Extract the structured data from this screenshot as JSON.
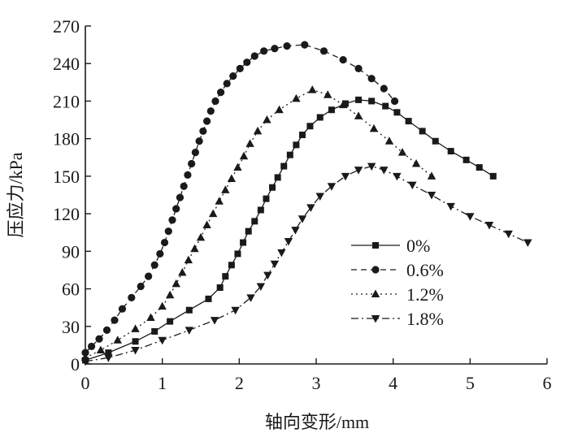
{
  "chart_data": {
    "type": "line",
    "title": "",
    "xlabel": "轴向变形/mm",
    "ylabel": "压应力/kPa",
    "xlim": [
      0,
      6
    ],
    "ylim": [
      0,
      270
    ],
    "xticks": [
      0,
      1,
      2,
      3,
      4,
      5,
      6
    ],
    "yticks": [
      0,
      30,
      60,
      90,
      120,
      150,
      180,
      210,
      240,
      270
    ],
    "grid": false,
    "legend_position": "right",
    "series": [
      {
        "name": "0%",
        "marker": "square",
        "dash": "solid",
        "x": [
          0.0,
          0.3,
          0.65,
          0.9,
          1.1,
          1.35,
          1.6,
          1.75,
          1.82,
          1.9,
          1.98,
          2.05,
          2.12,
          2.2,
          2.28,
          2.35,
          2.43,
          2.5,
          2.58,
          2.66,
          2.74,
          2.82,
          2.92,
          3.05,
          3.2,
          3.38,
          3.55,
          3.72,
          3.9,
          4.05,
          4.2,
          4.38,
          4.55,
          4.75,
          4.95,
          5.12,
          5.3
        ],
        "y": [
          3,
          9,
          18,
          26,
          34,
          43,
          52,
          61,
          70,
          79,
          88,
          97,
          106,
          114,
          123,
          132,
          141,
          149,
          158,
          167,
          175,
          183,
          190,
          197,
          203,
          208,
          211,
          210,
          206,
          201,
          194,
          186,
          178,
          170,
          163,
          157,
          150
        ]
      },
      {
        "name": "0.6%",
        "marker": "circle",
        "dash": "dashed",
        "x": [
          0.0,
          0.08,
          0.18,
          0.28,
          0.38,
          0.48,
          0.6,
          0.72,
          0.82,
          0.9,
          0.97,
          1.03,
          1.08,
          1.13,
          1.18,
          1.23,
          1.28,
          1.33,
          1.38,
          1.43,
          1.48,
          1.53,
          1.58,
          1.63,
          1.69,
          1.76,
          1.84,
          1.92,
          2.01,
          2.1,
          2.2,
          2.32,
          2.46,
          2.62,
          2.85,
          3.1,
          3.35,
          3.55,
          3.72,
          3.88,
          4.02
        ],
        "y": [
          9,
          14,
          20,
          27,
          35,
          44,
          53,
          62,
          70,
          79,
          88,
          97,
          106,
          115,
          124,
          133,
          142,
          151,
          160,
          169,
          178,
          186,
          194,
          202,
          210,
          217,
          224,
          230,
          236,
          241,
          246,
          250,
          252,
          254,
          255,
          250,
          243,
          236,
          228,
          220,
          210
        ]
      },
      {
        "name": "1.2%",
        "marker": "triangle-up",
        "dash": "dotted",
        "x": [
          0.0,
          0.2,
          0.42,
          0.65,
          0.85,
          1.0,
          1.1,
          1.18,
          1.26,
          1.34,
          1.42,
          1.5,
          1.58,
          1.66,
          1.74,
          1.82,
          1.9,
          1.98,
          2.06,
          2.14,
          2.24,
          2.36,
          2.52,
          2.74,
          2.95,
          3.15,
          3.35,
          3.55,
          3.75,
          3.95,
          4.12,
          4.3,
          4.5
        ],
        "y": [
          5,
          11,
          19,
          28,
          37,
          46,
          55,
          64,
          73,
          83,
          92,
          101,
          111,
          120,
          130,
          139,
          148,
          157,
          166,
          176,
          186,
          195,
          203,
          212,
          219,
          215,
          207,
          198,
          188,
          178,
          169,
          160,
          150
        ]
      },
      {
        "name": "1.8%",
        "marker": "triangle-down",
        "dash": "dashdot",
        "x": [
          0.0,
          0.3,
          0.65,
          1.0,
          1.35,
          1.68,
          1.95,
          2.15,
          2.28,
          2.37,
          2.46,
          2.55,
          2.64,
          2.73,
          2.82,
          2.93,
          3.05,
          3.2,
          3.38,
          3.55,
          3.72,
          3.88,
          4.05,
          4.25,
          4.5,
          4.75,
          5.0,
          5.25,
          5.5,
          5.75
        ],
        "y": [
          2,
          5,
          11,
          19,
          27,
          35,
          43,
          53,
          62,
          71,
          80,
          89,
          98,
          107,
          116,
          125,
          134,
          142,
          150,
          155,
          158,
          155,
          150,
          143,
          135,
          126,
          118,
          111,
          104,
          97
        ]
      }
    ]
  }
}
